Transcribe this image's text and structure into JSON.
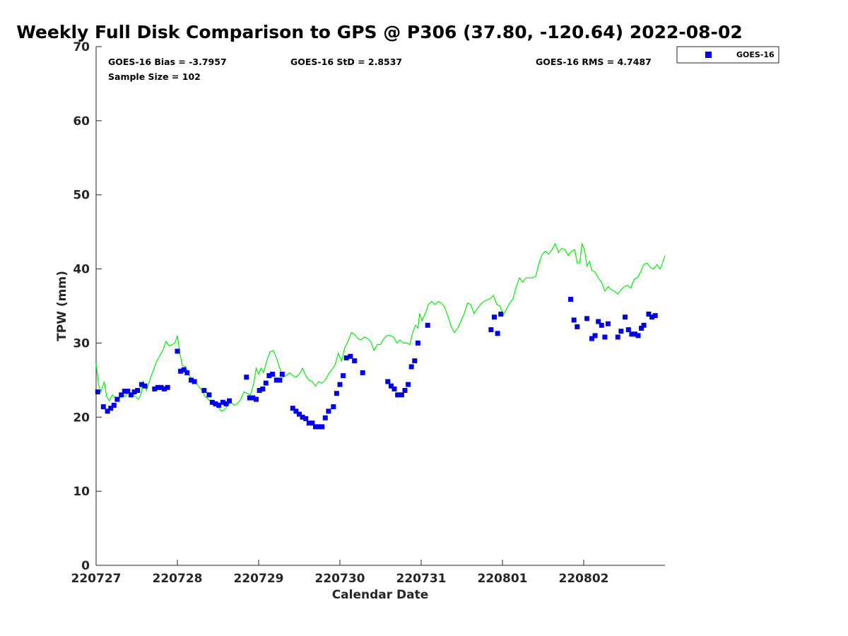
{
  "chart_data": {
    "type": "scatter",
    "title": "Weekly Full Disk Comparison to GPS @ P306 (37.80, -120.64) 2022-08-02",
    "xlabel": "Calendar Date",
    "ylabel": "TPW (mm)",
    "xlim": [
      0,
      7
    ],
    "ylim": [
      0,
      70
    ],
    "x_ticks": [
      {
        "value": 0,
        "label": "220727"
      },
      {
        "value": 1,
        "label": "220728"
      },
      {
        "value": 2,
        "label": "220729"
      },
      {
        "value": 3,
        "label": "220730"
      },
      {
        "value": 4,
        "label": "220731"
      },
      {
        "value": 5,
        "label": "220801"
      },
      {
        "value": 6,
        "label": "220802"
      }
    ],
    "y_ticks": [
      0,
      10,
      20,
      30,
      40,
      50,
      60,
      70
    ],
    "grid": false,
    "legend": {
      "position": "top-right",
      "entries": [
        "GOES-16"
      ]
    },
    "stats": {
      "bias": "GOES-16 Bias = -3.7957",
      "std": "GOES-16 StD = 2.8537",
      "rms": "GOES-16 RMS = 4.7487",
      "sample": "Sample Size = 102"
    },
    "series": [
      {
        "name": "GOES-16",
        "kind": "scatter",
        "marker": "square",
        "color": "#0000ee",
        "points": [
          [
            0.02,
            23.4
          ],
          [
            0.09,
            21.4
          ],
          [
            0.14,
            20.8
          ],
          [
            0.18,
            21.2
          ],
          [
            0.22,
            21.6
          ],
          [
            0.26,
            22.4
          ],
          [
            0.31,
            23.0
          ],
          [
            0.35,
            23.5
          ],
          [
            0.39,
            23.5
          ],
          [
            0.43,
            23.0
          ],
          [
            0.47,
            23.4
          ],
          [
            0.51,
            23.6
          ],
          [
            0.56,
            24.4
          ],
          [
            0.6,
            24.2
          ],
          [
            0.72,
            23.8
          ],
          [
            0.76,
            24.0
          ],
          [
            0.8,
            24.0
          ],
          [
            0.84,
            23.8
          ],
          [
            0.88,
            24.0
          ],
          [
            1.0,
            28.9
          ],
          [
            1.04,
            26.2
          ],
          [
            1.08,
            26.4
          ],
          [
            1.12,
            26.0
          ],
          [
            1.17,
            25.0
          ],
          [
            1.21,
            24.8
          ],
          [
            1.33,
            23.6
          ],
          [
            1.39,
            23.0
          ],
          [
            1.43,
            22.0
          ],
          [
            1.47,
            21.8
          ],
          [
            1.51,
            21.6
          ],
          [
            1.56,
            22.0
          ],
          [
            1.6,
            21.8
          ],
          [
            1.64,
            22.2
          ],
          [
            1.85,
            25.4
          ],
          [
            1.89,
            22.6
          ],
          [
            1.93,
            22.6
          ],
          [
            1.97,
            22.4
          ],
          [
            2.01,
            23.6
          ],
          [
            2.05,
            23.8
          ],
          [
            2.09,
            24.6
          ],
          [
            2.13,
            25.6
          ],
          [
            2.17,
            25.8
          ],
          [
            2.22,
            25.0
          ],
          [
            2.26,
            25.0
          ],
          [
            2.29,
            25.8
          ],
          [
            2.42,
            21.2
          ],
          [
            2.46,
            20.8
          ],
          [
            2.5,
            20.4
          ],
          [
            2.54,
            20.0
          ],
          [
            2.58,
            19.8
          ],
          [
            2.62,
            19.2
          ],
          [
            2.66,
            19.2
          ],
          [
            2.7,
            18.7
          ],
          [
            2.74,
            18.7
          ],
          [
            2.78,
            18.7
          ],
          [
            2.82,
            19.9
          ],
          [
            2.86,
            20.8
          ],
          [
            2.92,
            21.4
          ],
          [
            2.96,
            23.2
          ],
          [
            3.0,
            24.4
          ],
          [
            3.04,
            25.6
          ],
          [
            3.08,
            28.0
          ],
          [
            3.13,
            28.2
          ],
          [
            3.18,
            27.6
          ],
          [
            3.28,
            26.0
          ],
          [
            3.59,
            24.8
          ],
          [
            3.63,
            24.2
          ],
          [
            3.67,
            23.8
          ],
          [
            3.71,
            23.0
          ],
          [
            3.76,
            23.0
          ],
          [
            3.8,
            23.6
          ],
          [
            3.84,
            24.4
          ],
          [
            3.88,
            26.8
          ],
          [
            3.92,
            27.6
          ],
          [
            3.96,
            30.0
          ],
          [
            4.08,
            32.4
          ],
          [
            4.86,
            31.8
          ],
          [
            4.9,
            33.5
          ],
          [
            4.94,
            31.3
          ],
          [
            4.98,
            33.9
          ],
          [
            5.84,
            35.9
          ],
          [
            5.88,
            33.1
          ],
          [
            5.92,
            32.2
          ],
          [
            6.04,
            33.3
          ],
          [
            6.1,
            30.6
          ],
          [
            6.14,
            31.0
          ],
          [
            6.18,
            32.9
          ],
          [
            6.22,
            32.4
          ],
          [
            6.26,
            30.8
          ],
          [
            6.3,
            32.6
          ],
          [
            6.42,
            30.8
          ],
          [
            6.46,
            31.6
          ],
          [
            6.51,
            33.5
          ],
          [
            6.55,
            31.8
          ],
          [
            6.59,
            31.2
          ],
          [
            6.63,
            31.2
          ],
          [
            6.67,
            31.0
          ],
          [
            6.71,
            32.0
          ],
          [
            6.74,
            32.4
          ],
          [
            6.8,
            33.9
          ],
          [
            6.84,
            33.5
          ],
          [
            6.88,
            33.7
          ]
        ]
      },
      {
        "name": "",
        "kind": "line",
        "color": "#00ee00",
        "points": [
          [
            0.0,
            27.2
          ],
          [
            0.03,
            24.4
          ],
          [
            0.06,
            23.4
          ],
          [
            0.1,
            24.8
          ],
          [
            0.13,
            22.8
          ],
          [
            0.16,
            22.2
          ],
          [
            0.2,
            23.0
          ],
          [
            0.24,
            22.6
          ],
          [
            0.28,
            22.4
          ],
          [
            0.32,
            23.0
          ],
          [
            0.36,
            22.8
          ],
          [
            0.4,
            23.4
          ],
          [
            0.44,
            23.2
          ],
          [
            0.48,
            22.8
          ],
          [
            0.52,
            22.4
          ],
          [
            0.55,
            23.0
          ],
          [
            0.58,
            24.8
          ],
          [
            0.62,
            23.6
          ],
          [
            0.66,
            25.0
          ],
          [
            0.7,
            26.2
          ],
          [
            0.74,
            27.4
          ],
          [
            0.78,
            28.2
          ],
          [
            0.82,
            29.0
          ],
          [
            0.86,
            30.2
          ],
          [
            0.9,
            29.6
          ],
          [
            0.94,
            29.8
          ],
          [
            0.97,
            30.0
          ],
          [
            1.0,
            31.0
          ],
          [
            1.03,
            28.6
          ],
          [
            1.06,
            27.0
          ],
          [
            1.1,
            26.8
          ],
          [
            1.14,
            25.8
          ],
          [
            1.18,
            25.0
          ],
          [
            1.22,
            24.8
          ],
          [
            1.26,
            24.2
          ],
          [
            1.3,
            23.6
          ],
          [
            1.34,
            22.8
          ],
          [
            1.38,
            22.4
          ],
          [
            1.42,
            22.0
          ],
          [
            1.46,
            21.8
          ],
          [
            1.5,
            21.4
          ],
          [
            1.54,
            20.8
          ],
          [
            1.58,
            21.0
          ],
          [
            1.62,
            21.6
          ],
          [
            1.66,
            22.0
          ],
          [
            1.7,
            21.6
          ],
          [
            1.74,
            21.8
          ],
          [
            1.78,
            22.4
          ],
          [
            1.82,
            23.4
          ],
          [
            1.86,
            23.2
          ],
          [
            1.9,
            23.0
          ],
          [
            1.94,
            24.6
          ],
          [
            1.97,
            26.6
          ],
          [
            2.0,
            25.8
          ],
          [
            2.03,
            26.6
          ],
          [
            2.06,
            26.0
          ],
          [
            2.1,
            27.6
          ],
          [
            2.14,
            28.8
          ],
          [
            2.18,
            29.0
          ],
          [
            2.22,
            28.0
          ],
          [
            2.26,
            26.6
          ],
          [
            2.3,
            25.4
          ],
          [
            2.34,
            25.6
          ],
          [
            2.38,
            26.0
          ],
          [
            2.42,
            25.6
          ],
          [
            2.46,
            25.4
          ],
          [
            2.5,
            25.8
          ],
          [
            2.54,
            26.6
          ],
          [
            2.58,
            25.6
          ],
          [
            2.62,
            25.0
          ],
          [
            2.66,
            24.8
          ],
          [
            2.7,
            24.2
          ],
          [
            2.74,
            24.8
          ],
          [
            2.78,
            24.6
          ],
          [
            2.82,
            25.0
          ],
          [
            2.86,
            25.8
          ],
          [
            2.9,
            26.4
          ],
          [
            2.94,
            27.0
          ],
          [
            2.98,
            28.6
          ],
          [
            3.02,
            27.6
          ],
          [
            3.06,
            29.4
          ],
          [
            3.1,
            30.2
          ],
          [
            3.14,
            31.4
          ],
          [
            3.18,
            31.2
          ],
          [
            3.22,
            30.6
          ],
          [
            3.26,
            30.4
          ],
          [
            3.3,
            30.8
          ],
          [
            3.34,
            30.6
          ],
          [
            3.38,
            30.2
          ],
          [
            3.42,
            29.0
          ],
          [
            3.46,
            29.8
          ],
          [
            3.5,
            29.8
          ],
          [
            3.54,
            30.6
          ],
          [
            3.58,
            31.0
          ],
          [
            3.62,
            31.0
          ],
          [
            3.66,
            30.8
          ],
          [
            3.7,
            30.0
          ],
          [
            3.74,
            30.4
          ],
          [
            3.78,
            30.0
          ],
          [
            3.82,
            30.0
          ],
          [
            3.86,
            29.8
          ],
          [
            3.9,
            31.6
          ],
          [
            3.93,
            32.4
          ],
          [
            3.96,
            32.0
          ],
          [
            3.98,
            34.0
          ],
          [
            4.01,
            33.0
          ],
          [
            4.05,
            34.0
          ],
          [
            4.09,
            35.2
          ],
          [
            4.13,
            35.6
          ],
          [
            4.17,
            35.2
          ],
          [
            4.21,
            35.6
          ],
          [
            4.25,
            35.4
          ],
          [
            4.29,
            34.8
          ],
          [
            4.33,
            33.6
          ],
          [
            4.37,
            32.2
          ],
          [
            4.41,
            31.4
          ],
          [
            4.45,
            32.0
          ],
          [
            4.49,
            33.0
          ],
          [
            4.53,
            34.0
          ],
          [
            4.57,
            35.4
          ],
          [
            4.61,
            35.2
          ],
          [
            4.65,
            34.0
          ],
          [
            4.69,
            34.6
          ],
          [
            4.73,
            35.2
          ],
          [
            4.77,
            35.6
          ],
          [
            4.81,
            35.8
          ],
          [
            4.85,
            36.0
          ],
          [
            4.89,
            36.4
          ],
          [
            4.93,
            35.2
          ],
          [
            4.97,
            35.0
          ],
          [
            5.01,
            33.8
          ],
          [
            5.05,
            34.6
          ],
          [
            5.09,
            35.4
          ],
          [
            5.13,
            36.0
          ],
          [
            5.17,
            37.6
          ],
          [
            5.21,
            38.8
          ],
          [
            5.25,
            38.2
          ],
          [
            5.29,
            38.8
          ],
          [
            5.33,
            38.8
          ],
          [
            5.37,
            38.8
          ],
          [
            5.41,
            39.0
          ],
          [
            5.45,
            40.8
          ],
          [
            5.49,
            42.0
          ],
          [
            5.53,
            42.4
          ],
          [
            5.57,
            42.0
          ],
          [
            5.61,
            42.6
          ],
          [
            5.65,
            43.4
          ],
          [
            5.69,
            42.2
          ],
          [
            5.73,
            42.8
          ],
          [
            5.77,
            42.6
          ],
          [
            5.81,
            41.8
          ],
          [
            5.85,
            42.4
          ],
          [
            5.89,
            42.6
          ],
          [
            5.92,
            40.8
          ],
          [
            5.95,
            40.8
          ],
          [
            5.98,
            43.4
          ],
          [
            6.01,
            42.6
          ],
          [
            6.04,
            40.4
          ],
          [
            6.07,
            41.0
          ],
          [
            6.1,
            39.8
          ],
          [
            6.14,
            39.6
          ],
          [
            6.18,
            38.8
          ],
          [
            6.22,
            38.2
          ],
          [
            6.26,
            37.0
          ],
          [
            6.3,
            37.6
          ],
          [
            6.34,
            37.2
          ],
          [
            6.38,
            37.0
          ],
          [
            6.42,
            36.6
          ],
          [
            6.46,
            37.2
          ],
          [
            6.5,
            37.6
          ],
          [
            6.54,
            37.8
          ],
          [
            6.58,
            37.4
          ],
          [
            6.62,
            38.6
          ],
          [
            6.66,
            38.8
          ],
          [
            6.7,
            39.6
          ],
          [
            6.74,
            40.6
          ],
          [
            6.78,
            40.8
          ],
          [
            6.82,
            40.2
          ],
          [
            6.86,
            40.0
          ],
          [
            6.9,
            40.6
          ],
          [
            6.94,
            40.0
          ],
          [
            6.97,
            40.8
          ],
          [
            7.0,
            41.8
          ]
        ]
      }
    ]
  }
}
